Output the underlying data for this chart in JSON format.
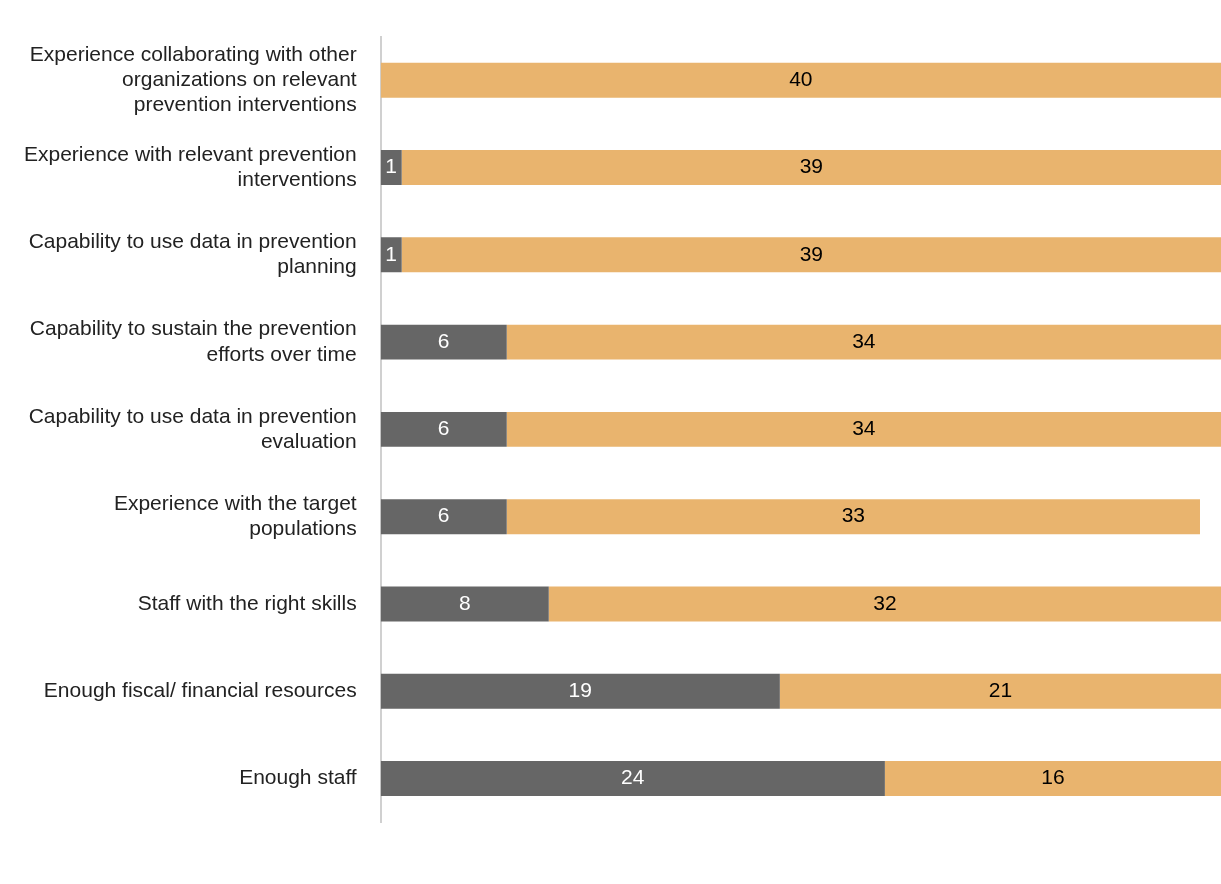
{
  "chart_data": {
    "type": "bar",
    "orientation": "horizontal",
    "stacked": true,
    "data_labels": true,
    "tick_labels": "y",
    "categories": [
      "Experience collaborating with other organizations on relevant prevention interventions",
      "Experience with relevant prevention interventions",
      "Capability to use data in prevention planning",
      "Capability to sustain the prevention efforts over time",
      "Capability to use data in prevention evaluation",
      "Experience with the target populations",
      "Staff with the right skills",
      "Enough fiscal/ financial resources",
      "Enough staff"
    ],
    "series": [
      {
        "color": "#666666",
        "values": [
          null,
          1,
          1,
          6,
          6,
          6,
          8,
          19,
          24
        ]
      },
      {
        "color": "#e9b46e",
        "values": [
          40,
          39,
          39,
          34,
          34,
          33,
          32,
          21,
          16
        ]
      }
    ]
  }
}
